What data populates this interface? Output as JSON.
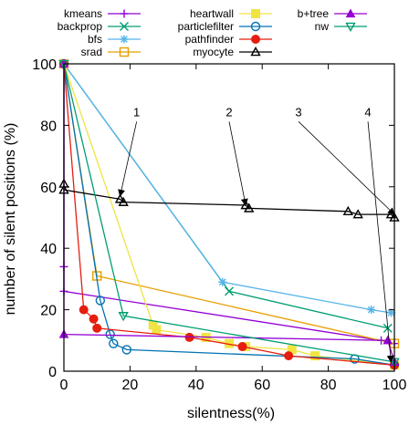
{
  "chart_data": {
    "type": "line",
    "title": "",
    "xlabel": "silentness(%)",
    "ylabel": "number of silent positions (%)",
    "xlim": [
      0,
      100
    ],
    "ylim": [
      0,
      100
    ],
    "xticks": [
      0,
      20,
      40,
      60,
      80,
      100
    ],
    "yticks": [
      0,
      20,
      40,
      60,
      80,
      100
    ],
    "grid": false,
    "legend_placement": "top",
    "series": [
      {
        "name": "kmeans",
        "color": "#9400d3",
        "marker": "plus",
        "points": [
          [
            0,
            100
          ],
          [
            0,
            34
          ],
          [
            0,
            26
          ],
          [
            96,
            10
          ],
          [
            100,
            9
          ]
        ]
      },
      {
        "name": "backprop",
        "color": "#009e73",
        "marker": "x",
        "points": [
          [
            0,
            100
          ],
          [
            50,
            26
          ],
          [
            98,
            14
          ]
        ]
      },
      {
        "name": "bfs",
        "color": "#56b4e9",
        "marker": "star",
        "points": [
          [
            0,
            100
          ],
          [
            48,
            29
          ],
          [
            93,
            20
          ],
          [
            99,
            19
          ]
        ]
      },
      {
        "name": "srad",
        "color": "#e69f00",
        "marker": "square",
        "points": [
          [
            0,
            100
          ],
          [
            10,
            31
          ],
          [
            100,
            9
          ]
        ]
      },
      {
        "name": "heartwall",
        "color": "#f0e442",
        "marker": "filled-square",
        "points": [
          [
            0,
            100
          ],
          [
            27,
            15
          ],
          [
            28,
            13.5
          ],
          [
            43,
            11
          ],
          [
            50,
            9
          ],
          [
            55,
            8
          ],
          [
            69,
            7
          ],
          [
            76,
            5
          ],
          [
            100,
            2
          ]
        ]
      },
      {
        "name": "particlefilter",
        "color": "#0072b2",
        "marker": "circle",
        "points": [
          [
            0,
            100
          ],
          [
            11,
            23
          ],
          [
            14,
            12
          ],
          [
            15,
            9
          ],
          [
            19,
            7
          ],
          [
            88,
            4
          ],
          [
            100,
            2
          ]
        ]
      },
      {
        "name": "pathfinder",
        "color": "#e51e10",
        "marker": "filled-circle",
        "points": [
          [
            0,
            100
          ],
          [
            6,
            20
          ],
          [
            9,
            17
          ],
          [
            10,
            14
          ],
          [
            38,
            11
          ],
          [
            54,
            8
          ],
          [
            68,
            5
          ],
          [
            100,
            2
          ]
        ]
      },
      {
        "name": "myocyte",
        "color": "#000000",
        "marker": "triangle",
        "points": [
          [
            0,
            61
          ],
          [
            0,
            59
          ],
          [
            17,
            56
          ],
          [
            18,
            55
          ],
          [
            55,
            54
          ],
          [
            56,
            53
          ],
          [
            86,
            52
          ],
          [
            89,
            51
          ],
          [
            99,
            51
          ],
          [
            100,
            50
          ]
        ]
      },
      {
        "name": "b+tree",
        "color": "#9400d3",
        "marker": "filled-triangle",
        "points": [
          [
            0,
            100
          ],
          [
            0,
            12
          ],
          [
            98,
            10
          ],
          [
            100,
            3
          ]
        ]
      },
      {
        "name": "nw",
        "color": "#009e73",
        "marker": "triangle-down",
        "points": [
          [
            0,
            100
          ],
          [
            18,
            18
          ],
          [
            100,
            3
          ]
        ]
      }
    ],
    "annotations": [
      {
        "text": "1",
        "text_at": [
          22,
          83
        ],
        "arrow_to": [
          17,
          57
        ]
      },
      {
        "text": "2",
        "text_at": [
          50,
          83
        ],
        "arrow_to": [
          55,
          54
        ]
      },
      {
        "text": "3",
        "text_at": [
          71,
          83
        ],
        "arrow_to": [
          100,
          51
        ]
      },
      {
        "text": "4",
        "text_at": [
          92,
          83
        ],
        "arrow_to": [
          99,
          3
        ]
      }
    ]
  }
}
